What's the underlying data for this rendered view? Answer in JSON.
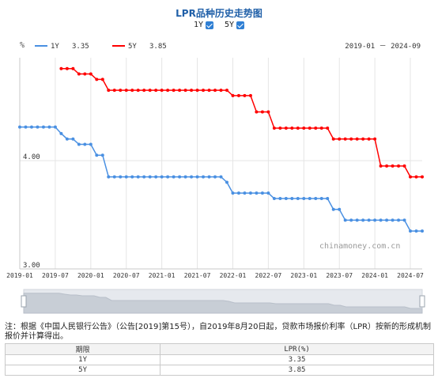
{
  "title": "LPR品种历史走势图",
  "toggles": [
    {
      "label": "1Y",
      "checked": true
    },
    {
      "label": "5Y",
      "checked": true
    }
  ],
  "colors": {
    "series_1y": "#4a90e2",
    "series_5y": "#ff0000",
    "title": "#1f5fa8",
    "grid": "#e5e5e5"
  },
  "chart_data": {
    "type": "line",
    "ylabel": "%",
    "range_label": "2019-01 － 2024-09",
    "watermark": "chinamoney.com.cn",
    "y_ticks": [
      "4.00",
      "3.00"
    ],
    "ylim": [
      3.0,
      4.95
    ],
    "x_ticks": [
      "2019-01",
      "2019-07",
      "2020-01",
      "2020-07",
      "2021-01",
      "2021-07",
      "2022-01",
      "2022-07",
      "2023-01",
      "2023-07",
      "2024-01",
      "2024-07"
    ],
    "legend": [
      {
        "name": "1Y",
        "value": "3.35"
      },
      {
        "name": "5Y",
        "value": "3.85"
      }
    ],
    "series": [
      {
        "name": "1Y",
        "x": [
          "2019-01",
          "2019-02",
          "2019-03",
          "2019-04",
          "2019-05",
          "2019-06",
          "2019-07",
          "2019-08",
          "2019-09",
          "2019-10",
          "2019-11",
          "2019-12",
          "2020-01",
          "2020-02",
          "2020-03",
          "2020-04",
          "2020-05",
          "2020-06",
          "2020-07",
          "2020-08",
          "2020-09",
          "2020-10",
          "2020-11",
          "2020-12",
          "2021-01",
          "2021-02",
          "2021-03",
          "2021-04",
          "2021-05",
          "2021-06",
          "2021-07",
          "2021-08",
          "2021-09",
          "2021-10",
          "2021-11",
          "2021-12",
          "2022-01",
          "2022-02",
          "2022-03",
          "2022-04",
          "2022-05",
          "2022-06",
          "2022-07",
          "2022-08",
          "2022-09",
          "2022-10",
          "2022-11",
          "2022-12",
          "2023-01",
          "2023-02",
          "2023-03",
          "2023-04",
          "2023-05",
          "2023-06",
          "2023-07",
          "2023-08",
          "2023-09",
          "2023-10",
          "2023-11",
          "2023-12",
          "2024-01",
          "2024-02",
          "2024-03",
          "2024-04",
          "2024-05",
          "2024-06",
          "2024-07",
          "2024-08",
          "2024-09"
        ],
        "values": [
          4.31,
          4.31,
          4.31,
          4.31,
          4.31,
          4.31,
          4.31,
          4.25,
          4.2,
          4.2,
          4.15,
          4.15,
          4.15,
          4.05,
          4.05,
          3.85,
          3.85,
          3.85,
          3.85,
          3.85,
          3.85,
          3.85,
          3.85,
          3.85,
          3.85,
          3.85,
          3.85,
          3.85,
          3.85,
          3.85,
          3.85,
          3.85,
          3.85,
          3.85,
          3.85,
          3.8,
          3.7,
          3.7,
          3.7,
          3.7,
          3.7,
          3.7,
          3.7,
          3.65,
          3.65,
          3.65,
          3.65,
          3.65,
          3.65,
          3.65,
          3.65,
          3.65,
          3.65,
          3.55,
          3.55,
          3.45,
          3.45,
          3.45,
          3.45,
          3.45,
          3.45,
          3.45,
          3.45,
          3.45,
          3.45,
          3.45,
          3.35,
          3.35,
          3.35
        ]
      },
      {
        "name": "5Y",
        "x": [
          "2019-08",
          "2019-09",
          "2019-10",
          "2019-11",
          "2019-12",
          "2020-01",
          "2020-02",
          "2020-03",
          "2020-04",
          "2020-05",
          "2020-06",
          "2020-07",
          "2020-08",
          "2020-09",
          "2020-10",
          "2020-11",
          "2020-12",
          "2021-01",
          "2021-02",
          "2021-03",
          "2021-04",
          "2021-05",
          "2021-06",
          "2021-07",
          "2021-08",
          "2021-09",
          "2021-10",
          "2021-11",
          "2021-12",
          "2022-01",
          "2022-02",
          "2022-03",
          "2022-04",
          "2022-05",
          "2022-06",
          "2022-07",
          "2022-08",
          "2022-09",
          "2022-10",
          "2022-11",
          "2022-12",
          "2023-01",
          "2023-02",
          "2023-03",
          "2023-04",
          "2023-05",
          "2023-06",
          "2023-07",
          "2023-08",
          "2023-09",
          "2023-10",
          "2023-11",
          "2023-12",
          "2024-01",
          "2024-02",
          "2024-03",
          "2024-04",
          "2024-05",
          "2024-06",
          "2024-07",
          "2024-08",
          "2024-09"
        ],
        "values": [
          4.85,
          4.85,
          4.85,
          4.8,
          4.8,
          4.8,
          4.75,
          4.75,
          4.65,
          4.65,
          4.65,
          4.65,
          4.65,
          4.65,
          4.65,
          4.65,
          4.65,
          4.65,
          4.65,
          4.65,
          4.65,
          4.65,
          4.65,
          4.65,
          4.65,
          4.65,
          4.65,
          4.65,
          4.65,
          4.6,
          4.6,
          4.6,
          4.6,
          4.45,
          4.45,
          4.45,
          4.3,
          4.3,
          4.3,
          4.3,
          4.3,
          4.3,
          4.3,
          4.3,
          4.3,
          4.3,
          4.2,
          4.2,
          4.2,
          4.2,
          4.2,
          4.2,
          4.2,
          4.2,
          3.95,
          3.95,
          3.95,
          3.95,
          3.95,
          3.85,
          3.85,
          3.85
        ]
      }
    ]
  },
  "note": "注：根据《中国人民银行公告》（公告[2019]第15号），自2019年8月20日起，贷款市场报价利率（LPR）按新的形成机制报价并计算得出。",
  "table": {
    "headers": [
      "期限",
      "LPR(%)"
    ],
    "rows": [
      [
        "1Y",
        "3.35"
      ],
      [
        "5Y",
        "3.85"
      ]
    ]
  }
}
